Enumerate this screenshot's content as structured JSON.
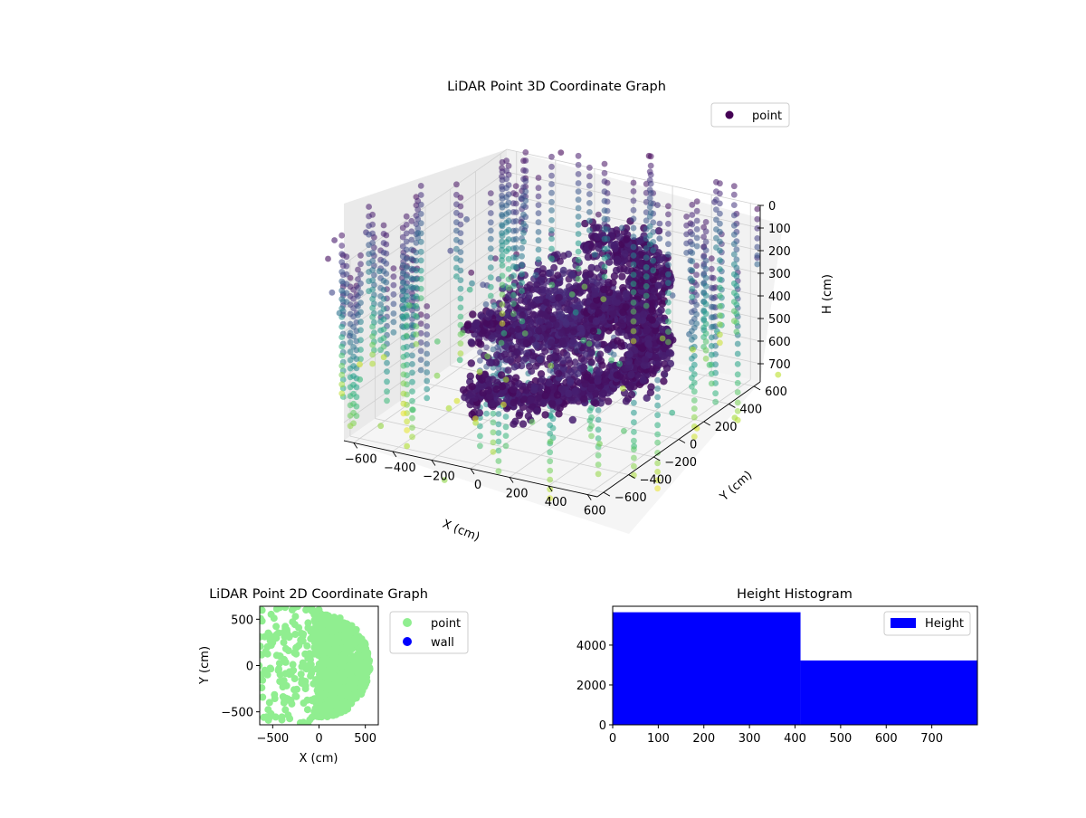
{
  "chart_data": [
    {
      "type": "scatter",
      "title": "LiDAR Point 3D Coordinate Graph",
      "xlabel": "X (cm)",
      "ylabel": "Y (cm)",
      "zlabel": "H (cm)",
      "x_ticks": [
        -600,
        -400,
        -200,
        0,
        200,
        400,
        600
      ],
      "y_ticks": [
        -600,
        -400,
        -200,
        0,
        200,
        400,
        600
      ],
      "z_ticks": [
        0,
        100,
        200,
        300,
        400,
        500,
        600,
        700
      ],
      "xlim": [
        -650,
        650
      ],
      "ylim": [
        -650,
        650
      ],
      "zlim": [
        0,
        780
      ],
      "z_inverted": true,
      "legend": {
        "placement": "upper-right",
        "entries": [
          {
            "label": "point",
            "color": "#440154"
          }
        ]
      },
      "colormap": "viridis",
      "wall_height_range": [
        100,
        640
      ],
      "dense_ring": {
        "radius_range": [
          380,
          560
        ],
        "angle_range_deg": [
          -105,
          105
        ],
        "height_range": [
          200,
          560
        ]
      }
    },
    {
      "type": "scatter",
      "title": "LiDAR Point 2D Coordinate Graph",
      "xlabel": "X (cm)",
      "ylabel": "Y (cm)",
      "x_ticks": [
        -500,
        0,
        500
      ],
      "y_ticks": [
        -500,
        0,
        500
      ],
      "xlim": [
        -640,
        640
      ],
      "ylim": [
        -640,
        640
      ],
      "legend": {
        "placement": "outside-right",
        "entries": [
          {
            "label": "point",
            "color": "#90ee90"
          },
          {
            "label": "wall",
            "color": "#0000ff"
          }
        ]
      }
    },
    {
      "type": "bar",
      "title": "Height Histogram",
      "xlabel": "",
      "ylabel": "",
      "bins": [
        {
          "start": 0,
          "end": 412,
          "count": 5650
        },
        {
          "start": 412,
          "end": 800,
          "count": 3230
        }
      ],
      "x_ticks": [
        0,
        100,
        200,
        300,
        400,
        500,
        600,
        700
      ],
      "y_ticks": [
        0,
        2000,
        4000
      ],
      "xlim": [
        0,
        800
      ],
      "ylim": [
        0,
        5950
      ],
      "color": "#0000ff",
      "legend": {
        "placement": "upper-right",
        "entries": [
          {
            "label": "Height",
            "color": "#0000ff"
          }
        ]
      }
    }
  ]
}
